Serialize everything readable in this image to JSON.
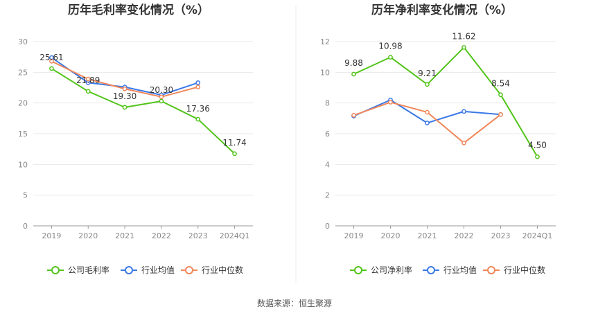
{
  "colors": {
    "company": "#52c41a",
    "industry_avg": "#3b78e7",
    "industry_median": "#f0875a",
    "grid": "#e8e8e8",
    "axis": "#999999",
    "divider": "#eeeeee"
  },
  "source_text": "数据来源：恒生聚源",
  "chart_data": [
    {
      "type": "line",
      "title": "历年毛利率变化情况（%）",
      "categories": [
        "2019",
        "2020",
        "2021",
        "2022",
        "2023",
        "2024Q1"
      ],
      "ylim": [
        0,
        30
      ],
      "yticks": [
        0,
        5,
        10,
        15,
        20,
        25,
        30
      ],
      "grid": true,
      "legend_position": "bottom",
      "series": [
        {
          "name": "公司毛利率",
          "key": "company",
          "labeled": true,
          "values": [
            25.61,
            21.89,
            19.3,
            20.3,
            17.36,
            11.74
          ],
          "labels": [
            "25.61",
            "21.89",
            "19.30",
            "20.30",
            "17.36",
            "11.74"
          ]
        },
        {
          "name": "行业均值",
          "key": "industry_avg",
          "labeled": false,
          "values": [
            27.4,
            23.3,
            22.6,
            21.3,
            23.3,
            null
          ]
        },
        {
          "name": "行业中位数",
          "key": "industry_median",
          "labeled": false,
          "values": [
            26.8,
            23.9,
            22.3,
            21.0,
            22.6,
            null
          ]
        }
      ]
    },
    {
      "type": "line",
      "title": "历年净利率变化情况（%）",
      "categories": [
        "2019",
        "2020",
        "2021",
        "2022",
        "2023",
        "2024Q1"
      ],
      "ylim": [
        0,
        12
      ],
      "yticks": [
        0,
        2,
        4,
        6,
        8,
        10,
        12
      ],
      "grid": true,
      "legend_position": "bottom",
      "series": [
        {
          "name": "公司净利率",
          "key": "company",
          "labeled": true,
          "values": [
            9.88,
            10.98,
            9.21,
            11.62,
            8.54,
            4.5
          ],
          "labels": [
            "9.88",
            "10.98",
            "9.21",
            "11.62",
            "8.54",
            "4.50"
          ]
        },
        {
          "name": "行业均值",
          "key": "industry_avg",
          "labeled": false,
          "values": [
            7.15,
            8.2,
            6.7,
            7.45,
            7.25,
            null
          ]
        },
        {
          "name": "行业中位数",
          "key": "industry_median",
          "labeled": false,
          "values": [
            7.2,
            8.05,
            7.4,
            5.4,
            7.25,
            null
          ]
        }
      ]
    }
  ]
}
